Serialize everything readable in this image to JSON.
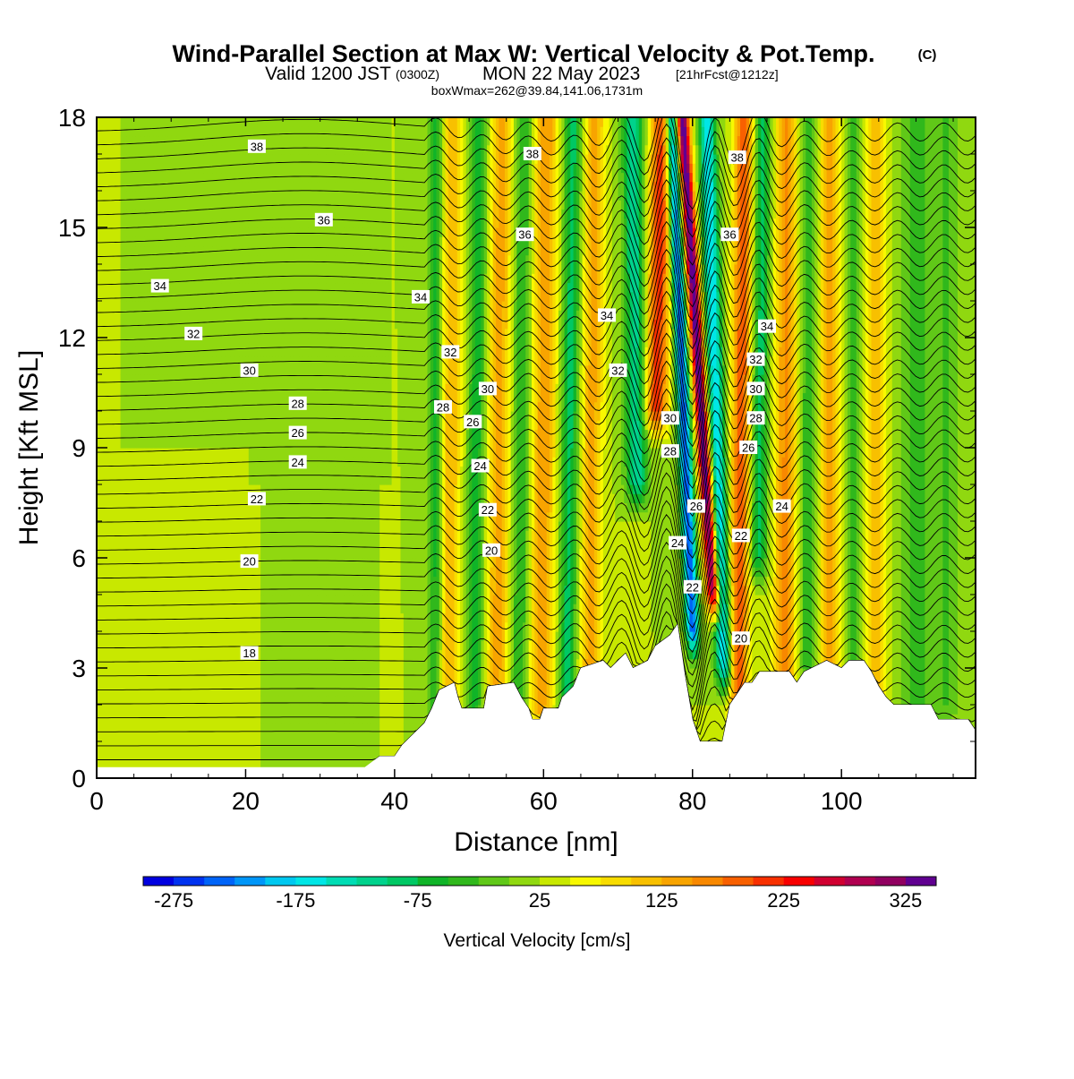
{
  "header": {
    "title": "Wind-Parallel Section at Max W: Vertical Velocity & Pot.Temp.",
    "copyright_mark": "(C)",
    "valid_prefix": "Valid 1200 JST",
    "valid_zulu": "(0300Z)",
    "valid_date": "MON 22 May 2023",
    "forecast": "[21hrFcst@1212z]",
    "box_line": "boxWmax=262@39.84,141.06,1731m"
  },
  "chart_data": {
    "type": "heatmap",
    "xlabel": "Distance [nm]",
    "ylabel": "Height [Kft MSL]",
    "xlim": [
      0,
      118
    ],
    "ylim": [
      0,
      18
    ],
    "x_ticks": [
      0,
      20,
      40,
      60,
      80,
      100
    ],
    "y_ticks": [
      0,
      3,
      6,
      9,
      12,
      15,
      18
    ],
    "colorbar": {
      "label": "Vertical Velocity [cm/s]",
      "tick_labels": [
        "-275",
        "-175",
        "-75",
        "25",
        "125",
        "225",
        "325"
      ],
      "colors": [
        "#0000e0",
        "#0032f0",
        "#0064f8",
        "#0096f8",
        "#00c8f0",
        "#00e6e6",
        "#00dcb4",
        "#00d28c",
        "#00c864",
        "#10b428",
        "#30b81c",
        "#60c818",
        "#90d810",
        "#c8e800",
        "#f8f800",
        "#f8dc00",
        "#f8c000",
        "#f8a400",
        "#f88800",
        "#f86000",
        "#f83000",
        "#f80000",
        "#d00030",
        "#b00050",
        "#900060",
        "#600090"
      ],
      "min": -300,
      "step": 25
    },
    "terrain": [
      [
        0,
        0.3
      ],
      [
        36,
        0.3
      ],
      [
        38,
        0.6
      ],
      [
        40,
        0.6
      ],
      [
        41,
        0.9
      ],
      [
        42,
        1.1
      ],
      [
        43,
        1.3
      ],
      [
        44,
        1.5
      ],
      [
        45,
        1.9
      ],
      [
        46,
        2.4
      ],
      [
        48,
        2.6
      ],
      [
        48.5,
        2.2
      ],
      [
        49,
        1.9
      ],
      [
        52,
        1.9
      ],
      [
        52.5,
        2.5
      ],
      [
        56,
        2.6
      ],
      [
        57,
        2.2
      ],
      [
        58,
        1.9
      ],
      [
        58.5,
        1.6
      ],
      [
        59.5,
        1.6
      ],
      [
        60,
        1.9
      ],
      [
        62,
        1.9
      ],
      [
        62.5,
        2.2
      ],
      [
        64,
        2.5
      ],
      [
        65,
        3.0
      ],
      [
        68,
        3.2
      ],
      [
        69,
        3.0
      ],
      [
        70,
        3.2
      ],
      [
        71,
        3.4
      ],
      [
        72,
        3.0
      ],
      [
        74,
        3.2
      ],
      [
        75,
        3.6
      ],
      [
        77,
        3.9
      ],
      [
        78,
        4.2
      ],
      [
        78.5,
        3.5
      ],
      [
        79,
        2.8
      ],
      [
        80,
        1.6
      ],
      [
        81,
        1.0
      ],
      [
        84,
        1.0
      ],
      [
        85,
        2.0
      ],
      [
        86,
        2.3
      ],
      [
        87,
        2.6
      ],
      [
        88,
        2.6
      ],
      [
        89,
        2.9
      ],
      [
        93,
        2.9
      ],
      [
        94,
        2.6
      ],
      [
        95,
        2.9
      ],
      [
        98,
        3.2
      ],
      [
        100,
        3.0
      ],
      [
        101,
        3.2
      ],
      [
        103,
        3.2
      ],
      [
        104,
        2.9
      ],
      [
        105,
        2.5
      ],
      [
        106,
        2.2
      ],
      [
        107,
        2.0
      ],
      [
        112,
        2.0
      ],
      [
        113,
        1.6
      ],
      [
        117,
        1.6
      ],
      [
        118,
        1.3
      ]
    ],
    "vertical_velocity_features": [
      {
        "x": 81.5,
        "w": 0.9,
        "amp": 330,
        "z0": 5.0,
        "z1": 18,
        "lean": -0.32
      },
      {
        "x": 79.0,
        "w": 0.9,
        "amp": -270,
        "z0": 4.0,
        "z1": 18,
        "lean": -0.2
      },
      {
        "x": 83.3,
        "w": 1.1,
        "amp": -200,
        "z0": 3.0,
        "z1": 18,
        "lean": -0.15
      },
      {
        "x": 75.0,
        "w": 1.6,
        "amp": 190,
        "z0": 10,
        "z1": 18,
        "lean": 0.1
      },
      {
        "x": 72.5,
        "w": 1.5,
        "amp": -140,
        "z0": 8,
        "z1": 18,
        "lean": -0.05
      },
      {
        "x": 86.5,
        "w": 1.3,
        "amp": 170,
        "z0": 2.0,
        "z1": 18,
        "lean": 0.05
      },
      {
        "x": 89.0,
        "w": 1.2,
        "amp": -110,
        "z0": 6,
        "z1": 18,
        "lean": 0.05
      },
      {
        "x": 92.5,
        "w": 1.5,
        "amp": 130,
        "z0": 2.5,
        "z1": 18,
        "lean": 0.02
      },
      {
        "x": 95.5,
        "w": 1.2,
        "amp": -70,
        "z0": 3,
        "z1": 18,
        "lean": 0.0
      },
      {
        "x": 98.5,
        "w": 1.4,
        "amp": 110,
        "z0": 3,
        "z1": 18,
        "lean": 0.0
      },
      {
        "x": 101.5,
        "w": 1.1,
        "amp": -60,
        "z0": 3,
        "z1": 18,
        "lean": 0.0
      },
      {
        "x": 104.5,
        "w": 1.3,
        "amp": 90,
        "z0": 2,
        "z1": 18,
        "lean": 0.0
      },
      {
        "x": 66.5,
        "w": 1.4,
        "amp": 110,
        "z0": 3,
        "z1": 18,
        "lean": 0.05
      },
      {
        "x": 63.5,
        "w": 1.2,
        "amp": -110,
        "z0": 2,
        "z1": 18,
        "lean": 0.05
      },
      {
        "x": 60.0,
        "w": 1.6,
        "amp": 120,
        "z0": 2,
        "z1": 18,
        "lean": 0.04
      },
      {
        "x": 57.0,
        "w": 1.2,
        "amp": -80,
        "z0": 2,
        "z1": 18,
        "lean": 0.04
      },
      {
        "x": 54.0,
        "w": 1.5,
        "amp": 110,
        "z0": 2,
        "z1": 18,
        "lean": 0.04
      },
      {
        "x": 51.0,
        "w": 1.2,
        "amp": -90,
        "z0": 2,
        "z1": 18,
        "lean": 0.04
      },
      {
        "x": 47.5,
        "w": 1.4,
        "amp": 100,
        "z0": 2,
        "z1": 18,
        "lean": 0.04
      },
      {
        "x": 45.5,
        "w": 1.0,
        "amp": -90,
        "z0": 2,
        "z1": 18,
        "lean": 0.0
      },
      {
        "x": 110.0,
        "w": 2.0,
        "amp": -60,
        "z0": 2,
        "z1": 18,
        "lean": 0.0
      },
      {
        "x": 114.0,
        "w": 2.0,
        "amp": -50,
        "z0": 2,
        "z1": 18,
        "lean": 0.0
      }
    ],
    "contour_labels": [
      {
        "text": "38",
        "x": 21.5,
        "z": 17.2
      },
      {
        "text": "36",
        "x": 30.5,
        "z": 15.2
      },
      {
        "text": "34",
        "x": 8.5,
        "z": 13.4
      },
      {
        "text": "34",
        "x": 43.5,
        "z": 13.1
      },
      {
        "text": "32",
        "x": 13.0,
        "z": 12.1
      },
      {
        "text": "32",
        "x": 47.5,
        "z": 11.6
      },
      {
        "text": "30",
        "x": 20.5,
        "z": 11.1
      },
      {
        "text": "30",
        "x": 52.5,
        "z": 10.6
      },
      {
        "text": "28",
        "x": 27.0,
        "z": 10.2
      },
      {
        "text": "28",
        "x": 46.5,
        "z": 10.1
      },
      {
        "text": "26",
        "x": 27.0,
        "z": 9.4
      },
      {
        "text": "26",
        "x": 50.5,
        "z": 9.7
      },
      {
        "text": "24",
        "x": 27.0,
        "z": 8.6
      },
      {
        "text": "24",
        "x": 51.5,
        "z": 8.5
      },
      {
        "text": "22",
        "x": 21.5,
        "z": 7.6
      },
      {
        "text": "22",
        "x": 52.5,
        "z": 7.3
      },
      {
        "text": "20",
        "x": 20.5,
        "z": 5.9
      },
      {
        "text": "20",
        "x": 53.0,
        "z": 6.2
      },
      {
        "text": "18",
        "x": 20.5,
        "z": 3.4
      },
      {
        "text": "38",
        "x": 58.5,
        "z": 17.0
      },
      {
        "text": "36",
        "x": 57.5,
        "z": 14.8
      },
      {
        "text": "34",
        "x": 68.5,
        "z": 12.6
      },
      {
        "text": "32",
        "x": 70.0,
        "z": 11.1
      },
      {
        "text": "30",
        "x": 77.0,
        "z": 9.8
      },
      {
        "text": "28",
        "x": 77.0,
        "z": 8.9
      },
      {
        "text": "26",
        "x": 80.5,
        "z": 7.4
      },
      {
        "text": "24",
        "x": 78.0,
        "z": 6.4
      },
      {
        "text": "22",
        "x": 80.0,
        "z": 5.2
      },
      {
        "text": "38",
        "x": 86.0,
        "z": 16.9
      },
      {
        "text": "36",
        "x": 85.0,
        "z": 14.8
      },
      {
        "text": "34",
        "x": 90.0,
        "z": 12.3
      },
      {
        "text": "32",
        "x": 88.5,
        "z": 11.4
      },
      {
        "text": "30",
        "x": 88.5,
        "z": 10.6
      },
      {
        "text": "28",
        "x": 88.5,
        "z": 9.8
      },
      {
        "text": "26",
        "x": 87.5,
        "z": 9.0
      },
      {
        "text": "24",
        "x": 92.0,
        "z": 7.4
      },
      {
        "text": "22",
        "x": 86.5,
        "z": 6.6
      },
      {
        "text": "20",
        "x": 86.5,
        "z": 3.8
      }
    ]
  }
}
